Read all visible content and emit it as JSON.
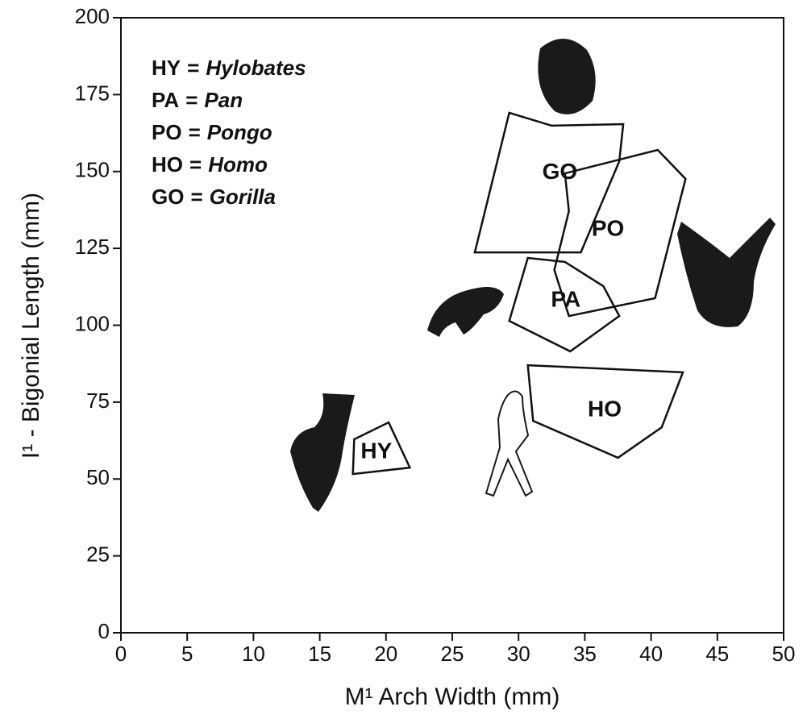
{
  "chart_data": {
    "type": "polygon",
    "x_label": "M¹ Arch Width (mm)",
    "y_label": "I¹ - Bigonial Length (mm)",
    "xlim": [
      0,
      50
    ],
    "ylim": [
      0,
      200
    ],
    "xticks": [
      0,
      5,
      10,
      15,
      20,
      25,
      30,
      35,
      40,
      45,
      50
    ],
    "yticks": [
      0,
      25,
      50,
      75,
      100,
      125,
      150,
      175,
      200
    ],
    "color": "#111111",
    "legend": [
      {
        "code": "HY",
        "separator": "=",
        "genus": "Hylobates"
      },
      {
        "code": "PA",
        "separator": "=",
        "genus": "Pan"
      },
      {
        "code": "PO",
        "separator": "=",
        "genus": "Pongo"
      },
      {
        "code": "HO",
        "separator": "=",
        "genus": "Homo"
      },
      {
        "code": "GO",
        "separator": "=",
        "genus": "Gorilla"
      }
    ],
    "series": [
      {
        "name": "GO",
        "x": [
          29.3,
          32.5,
          37.9,
          37.6,
          34.7,
          26.7
        ],
        "y": [
          169.1,
          164.9,
          165.4,
          153.3,
          123.7,
          123.7
        ]
      },
      {
        "name": "PO",
        "x": [
          33.5,
          40.5,
          42.6,
          40.3,
          33.8,
          32.7,
          33.8
        ],
        "y": [
          149.4,
          157.0,
          147.6,
          108.8,
          103.0,
          118.0,
          137.1
        ]
      },
      {
        "name": "PA",
        "x": [
          30.7,
          33.5,
          36.4,
          37.6,
          33.9,
          29.3
        ],
        "y": [
          121.9,
          120.6,
          112.7,
          103.0,
          91.5,
          101.4
        ]
      },
      {
        "name": "HO",
        "x": [
          30.7,
          42.4,
          40.8,
          37.5,
          31.1
        ],
        "y": [
          87.0,
          84.7,
          66.8,
          56.9,
          68.9
        ]
      },
      {
        "name": "HY",
        "x": [
          17.6,
          20.2,
          21.8,
          17.5
        ],
        "y": [
          62.9,
          68.4,
          53.7,
          51.6
        ]
      }
    ]
  }
}
